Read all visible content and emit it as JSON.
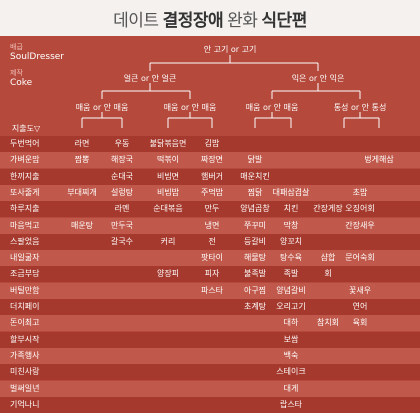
{
  "header": {
    "left": "데이트",
    "bold1": "결정장애",
    "mid": "완화",
    "bold2": "식단편"
  },
  "meta": {
    "k1": "배급",
    "v1": "SoulDresser",
    "k2": "제작",
    "v2": "Coke"
  },
  "tree": {
    "root": "안 고기 or 고기",
    "left": "얼큰 or 안 얼큰",
    "right": "익은 or 안 익은",
    "l1": "매움 or 안 매움",
    "l2": "매움 or 안 매움",
    "r1": "매움 or 안 매움",
    "r2": "통성 or 안 통성"
  },
  "axis_label": "지출도▽",
  "rows": [
    {
      "label": "두번먹어",
      "cells": [
        "라면",
        "우동",
        "불닭볶음면",
        "김밥",
        "",
        "",
        "",
        "",
        "",
        ""
      ]
    },
    {
      "label": "가벼운맘",
      "cells": [
        "짬뽕",
        "해장국",
        "떡볶이",
        "짜장면",
        "닭발",
        "",
        "",
        "",
        "",
        "벙게해삼"
      ]
    },
    {
      "label": "한끼지출",
      "cells": [
        "",
        "순대국",
        "비빔면",
        "햄버거",
        "매운치킨",
        "",
        "",
        "",
        "",
        ""
      ]
    },
    {
      "label": "또사줄게",
      "cells": [
        "부대찌개",
        "설렁탕",
        "비빔밥",
        "주먹밥",
        "찜닭",
        "대패삼겹살",
        "",
        "초밥",
        "",
        ""
      ]
    },
    {
      "label": "하루지출",
      "cells": [
        "",
        "라멘",
        "순대볶음",
        "만두",
        "양념곱창",
        "치킨",
        "간장게장",
        "오징어회",
        "",
        ""
      ]
    },
    {
      "label": "마음먹고",
      "cells": [
        "매운탕",
        "만두국",
        "",
        "냉면",
        "쭈꾸미",
        "막창",
        "",
        "간장새우",
        "",
        ""
      ]
    },
    {
      "label": "스팔었음",
      "cells": [
        "",
        "갈국수",
        "커리",
        "전",
        "등갈비",
        "양꼬치",
        "",
        "",
        "",
        ""
      ]
    },
    {
      "label": "내일굶자",
      "cells": [
        "",
        "",
        "",
        "팟타이",
        "해물탕",
        "탕수육",
        "샴합",
        "문어숙회",
        "",
        ""
      ]
    },
    {
      "label": "조금부담",
      "cells": [
        "",
        "",
        "양장피",
        "피자",
        "불족발",
        "족발",
        "회",
        "",
        "",
        ""
      ]
    },
    {
      "label": "버틸만함",
      "cells": [
        "",
        "",
        "",
        "파스타",
        "아구찜",
        "양념갈비",
        "",
        "꽃새우",
        "",
        ""
      ]
    },
    {
      "label": "더치페이",
      "cells": [
        "",
        "",
        "",
        "",
        "초계탕",
        "오리고기",
        "",
        "연어",
        "",
        ""
      ]
    },
    {
      "label": "돈이최고",
      "cells": [
        "",
        "",
        "",
        "",
        "",
        "대하",
        "참치회",
        "육회",
        "",
        ""
      ]
    },
    {
      "label": "할부시작",
      "cells": [
        "",
        "",
        "",
        "",
        "",
        "보쌈",
        "",
        "",
        "",
        ""
      ]
    },
    {
      "label": "가족행사",
      "cells": [
        "",
        "",
        "",
        "",
        "",
        "백숙",
        "",
        "",
        "",
        ""
      ]
    },
    {
      "label": "미친사랑",
      "cells": [
        "",
        "",
        "",
        "",
        "",
        "스테이크",
        "",
        "",
        "",
        ""
      ]
    },
    {
      "label": "벌써일년",
      "cells": [
        "",
        "",
        "",
        "",
        "",
        "대게",
        "",
        "",
        "",
        ""
      ]
    },
    {
      "label": "기억나니",
      "cells": [
        "",
        "",
        "",
        "",
        "",
        "랍스타",
        "",
        "",
        "",
        ""
      ]
    }
  ]
}
